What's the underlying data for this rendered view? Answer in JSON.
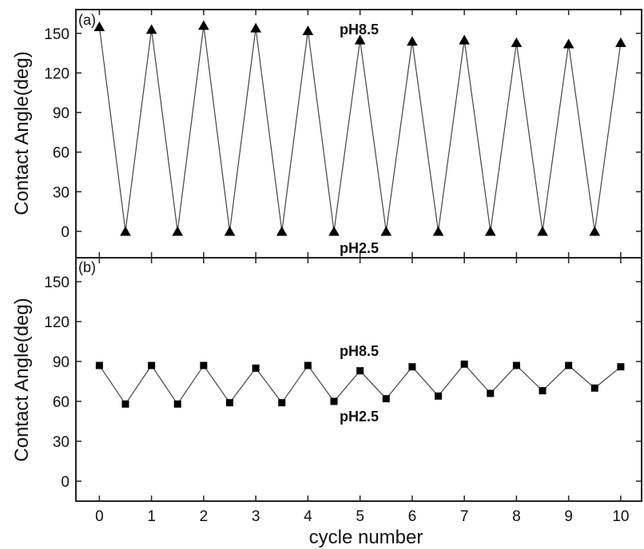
{
  "chart_data": [
    {
      "type": "line",
      "panel_label": "(a)",
      "ylabel": "Contact Angle(deg)",
      "xlim": [
        -0.45,
        10.4
      ],
      "ylim": [
        -20,
        168
      ],
      "yticks": [
        0,
        30,
        60,
        90,
        120,
        150
      ],
      "marker": "triangle",
      "annotations": [
        "pH8.5",
        "pH2.5"
      ],
      "series": [
        {
          "x": [
            0,
            0.5,
            1,
            1.5,
            2,
            2.5,
            3,
            3.5,
            4,
            4.5,
            5,
            5.5,
            6,
            6.5,
            7,
            7.5,
            8,
            8.5,
            9,
            9.5,
            10
          ],
          "y": [
            155,
            0,
            153,
            0,
            156,
            0,
            154,
            0,
            152,
            0,
            145,
            0,
            144,
            0,
            145,
            0,
            143,
            0,
            142,
            0,
            143
          ]
        }
      ]
    },
    {
      "type": "line",
      "panel_label": "(b)",
      "ylabel": "Contact Angle(deg)",
      "xlabel": "cycle number",
      "xlim": [
        -0.45,
        10.4
      ],
      "ylim": [
        -15,
        168
      ],
      "xticks": [
        0,
        1,
        2,
        3,
        4,
        5,
        6,
        7,
        8,
        9,
        10
      ],
      "yticks": [
        0,
        30,
        60,
        90,
        120,
        150
      ],
      "marker": "square",
      "annotations": [
        "pH8.5",
        "pH2.5"
      ],
      "series": [
        {
          "x": [
            0,
            0.5,
            1,
            1.5,
            2,
            2.5,
            3,
            3.5,
            4,
            4.5,
            5,
            5.5,
            6,
            6.5,
            7,
            7.5,
            8,
            8.5,
            9,
            9.5,
            10
          ],
          "y": [
            87,
            58,
            87,
            58,
            87,
            59,
            85,
            59,
            87,
            60,
            83,
            62,
            86,
            64,
            88,
            66,
            87,
            68,
            87,
            70,
            86
          ]
        }
      ]
    }
  ]
}
